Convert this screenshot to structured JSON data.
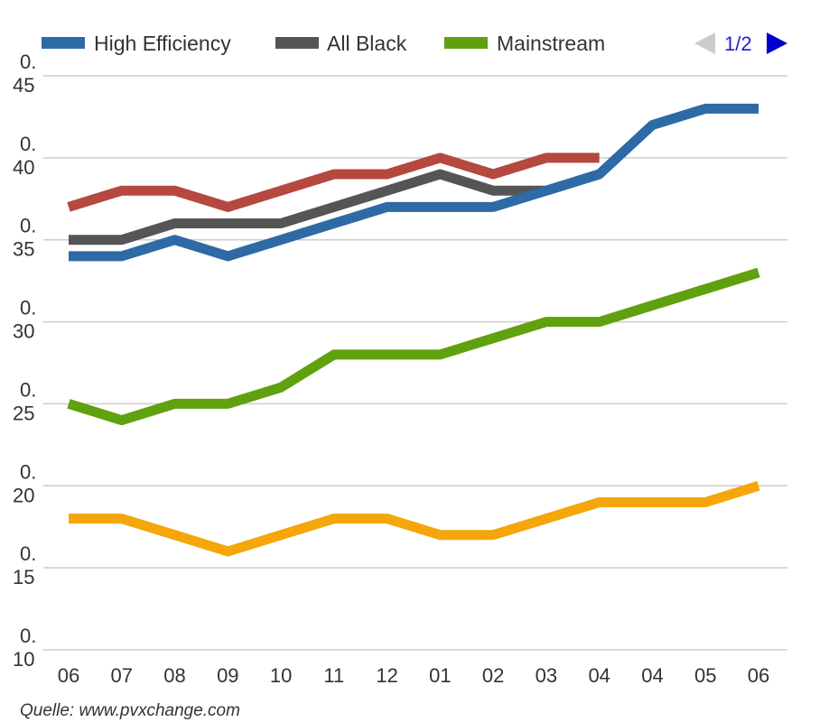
{
  "chart_data": {
    "type": "line",
    "categories": [
      "06",
      "07",
      "08",
      "09",
      "10",
      "11",
      "12",
      "01",
      "02",
      "03",
      "04",
      "04",
      "05",
      "06"
    ],
    "yticks": [
      {
        "value": 0.1,
        "line1": "0.",
        "line2": "10"
      },
      {
        "value": 0.15,
        "line1": "0.",
        "line2": "15"
      },
      {
        "value": 0.2,
        "line1": "0.",
        "line2": "20"
      },
      {
        "value": 0.25,
        "line1": "0.",
        "line2": "25"
      },
      {
        "value": 0.3,
        "line1": "0.",
        "line2": "30"
      },
      {
        "value": 0.35,
        "line1": "0.",
        "line2": "35"
      },
      {
        "value": 0.4,
        "line1": "0.",
        "line2": "40"
      },
      {
        "value": 0.45,
        "line1": "0.",
        "line2": "45"
      }
    ],
    "ylim": [
      0.1,
      0.45
    ],
    "series": [
      {
        "name": "High Efficiency",
        "color": "#2e6aa6",
        "values": [
          0.34,
          0.34,
          0.35,
          0.34,
          0.35,
          0.36,
          0.37,
          0.37,
          0.37,
          0.38,
          0.39,
          0.42,
          0.43,
          0.43
        ]
      },
      {
        "name": "All Black",
        "color": "#555555",
        "values": [
          0.35,
          0.35,
          0.36,
          0.36,
          0.36,
          0.37,
          0.38,
          0.39,
          0.38,
          0.38,
          0.39,
          null,
          null,
          null
        ]
      },
      {
        "name": "Mainstream",
        "color": "#5fa10e",
        "values": [
          0.25,
          0.24,
          0.25,
          0.25,
          0.26,
          0.28,
          0.28,
          0.28,
          0.29,
          0.3,
          0.3,
          0.31,
          0.32,
          0.33
        ]
      },
      {
        "name": "",
        "color": "#b5483f",
        "values": [
          0.37,
          0.38,
          0.38,
          0.37,
          0.38,
          0.39,
          0.39,
          0.4,
          0.39,
          0.4,
          0.4,
          null,
          null,
          null
        ]
      },
      {
        "name": "",
        "color": "#f5a60a",
        "values": [
          0.18,
          0.18,
          0.17,
          0.16,
          0.17,
          0.18,
          0.18,
          0.17,
          0.17,
          0.18,
          0.19,
          0.19,
          0.19,
          0.2
        ]
      }
    ]
  },
  "legend": {
    "items": [
      {
        "label": "High Efficiency",
        "color": "#2e6aa6"
      },
      {
        "label": "All Black",
        "color": "#555555"
      },
      {
        "label": "Mainstream",
        "color": "#5fa10e"
      }
    ],
    "page": "1/2",
    "prev_icon": "triangle-left-icon",
    "next_icon": "triangle-right-icon",
    "prev_color": "#cccccc",
    "next_color": "#0000cc"
  },
  "source": "Quelle: www.pvxchange.com"
}
